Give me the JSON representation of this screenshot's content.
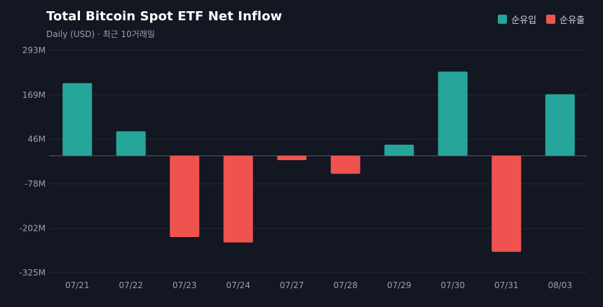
{
  "header": {
    "title": "Total Bitcoin Spot ETF Net Inflow",
    "subtitle": "Daily (USD) · 최근 10거래일"
  },
  "legend": {
    "inflow_label": "순유입",
    "outflow_label": "순유출"
  },
  "colors": {
    "inflow": "#26a69a",
    "outflow": "#ef5350",
    "background": "#131722",
    "grid": "#262a34",
    "zero_line": "#434651"
  },
  "chart_data": {
    "type": "bar",
    "title": "Total Bitcoin Spot ETF Net Inflow",
    "subtitle": "Daily (USD) · 최근 10거래일",
    "xlabel": "",
    "ylabel": "",
    "categories": [
      "07/21",
      "07/22",
      "07/23",
      "07/24",
      "07/27",
      "07/28",
      "07/29",
      "07/30",
      "07/31",
      "08/03"
    ],
    "values": [
      202,
      68,
      -226,
      -241,
      -12,
      -50,
      31,
      234,
      -267,
      171
    ],
    "unit": "M",
    "ylim": [
      -325,
      293
    ],
    "yticks": [
      293,
      169,
      46,
      -78,
      -202,
      -325
    ],
    "ytick_labels": [
      "293M",
      "169M",
      "46M",
      "-78M",
      "-202M",
      "-325M"
    ],
    "grid": true,
    "legend_position": "top-right"
  }
}
